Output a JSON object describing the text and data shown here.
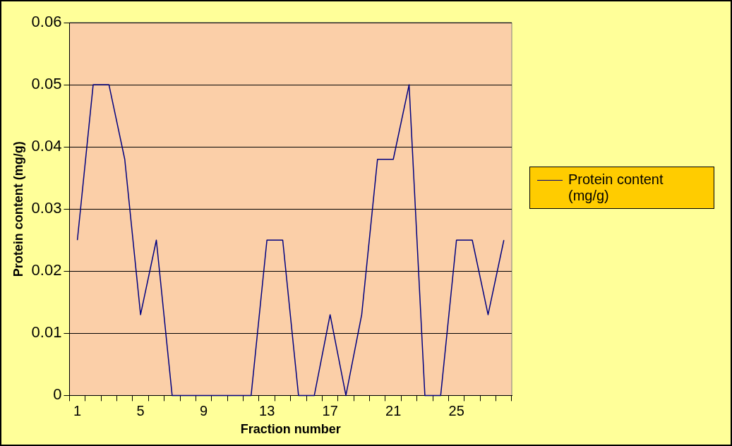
{
  "chart_data": {
    "type": "line",
    "xlabel": "Fraction number",
    "ylabel": "Protein content (mg/g)",
    "categories": [
      "1",
      null,
      null,
      null,
      "5",
      null,
      null,
      null,
      "9",
      null,
      null,
      null,
      "13",
      null,
      null,
      null,
      "17",
      null,
      null,
      null,
      "21",
      null,
      null,
      null,
      "25",
      null,
      null,
      null
    ],
    "series": [
      {
        "name": "Protein content (mg/g)",
        "color": "#000080",
        "values": [
          0.025,
          0.05,
          0.05,
          0.038,
          0.013,
          0.025,
          0,
          0,
          0,
          0,
          0,
          0,
          0.025,
          0.025,
          0,
          0,
          0.013,
          0,
          0.013,
          0.038,
          0.038,
          0.05,
          0,
          0,
          0.025,
          0.025,
          0.013,
          0.025
        ]
      }
    ],
    "ylim": [
      0,
      0.06
    ],
    "yticks": [
      0,
      0.01,
      0.02,
      0.03,
      0.04,
      0.05,
      0.06
    ],
    "grid": "y",
    "legend": "right",
    "marker": "none",
    "line_style": "solid"
  }
}
